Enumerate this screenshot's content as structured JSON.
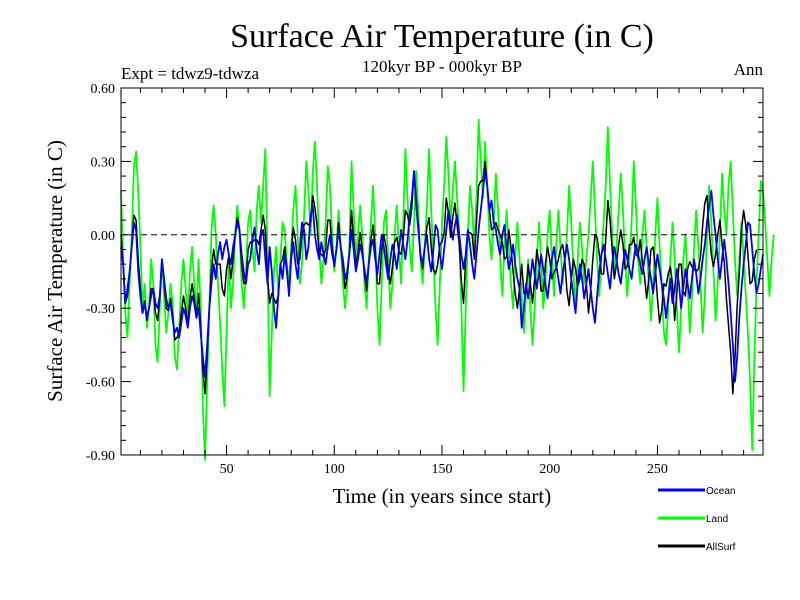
{
  "chart_data": {
    "type": "line",
    "title": "Surface Air Temperature (in C)",
    "subtitle": "120kyr BP - 000kyr BP",
    "left_label": "Expt = tdwz9-tdwza",
    "right_label": "Ann",
    "xlabel": "Time (in years since start)",
    "ylabel": "Surface Air Temperature (in C)",
    "xlim": [
      1,
      299
    ],
    "ylim": [
      -0.9,
      0.6
    ],
    "xticks": [
      50,
      100,
      150,
      200,
      250
    ],
    "xtick_labels": [
      "50",
      "100",
      "150",
      "200",
      "250"
    ],
    "yticks": [
      -0.9,
      -0.6,
      -0.3,
      0.0,
      0.3,
      0.6
    ],
    "ytick_labels": [
      "-0.90",
      "-0.60",
      "-0.30",
      "0.00",
      "0.30",
      "0.60"
    ],
    "reference_line": 0.0,
    "legend_position": "bottom-right, below plot",
    "x_series_note": "years 1..299",
    "series": [
      {
        "name": "Ocean",
        "color": "#0000ff",
        "x_start": 1,
        "values": [
          -0.05,
          -0.12,
          -0.28,
          -0.22,
          -0.15,
          -0.05,
          0.05,
          0.02,
          -0.15,
          -0.25,
          -0.32,
          -0.28,
          -0.34,
          -0.3,
          -0.25,
          -0.22,
          -0.28,
          -0.3,
          -0.25,
          -0.1,
          -0.18,
          -0.26,
          -0.3,
          -0.28,
          -0.35,
          -0.4,
          -0.38,
          -0.42,
          -0.36,
          -0.3,
          -0.33,
          -0.38,
          -0.3,
          -0.25,
          -0.28,
          -0.34,
          -0.3,
          -0.4,
          -0.5,
          -0.58,
          -0.45,
          -0.3,
          -0.2,
          -0.12,
          -0.18,
          -0.08,
          -0.03,
          -0.1,
          -0.05,
          -0.02,
          -0.08,
          -0.12,
          -0.05,
          0.0,
          0.05,
          0.02,
          -0.08,
          -0.15,
          -0.2,
          -0.12,
          -0.1,
          -0.02,
          0.03,
          -0.06,
          -0.12,
          0.0,
          0.02,
          -0.1,
          -0.2,
          -0.05,
          -0.15,
          -0.3,
          -0.38,
          -0.25,
          -0.12,
          -0.18,
          -0.08,
          -0.15,
          -0.25,
          -0.1,
          -0.03,
          -0.12,
          -0.18,
          -0.05,
          0.05,
          0.02,
          -0.1,
          -0.05,
          0.08,
          0.12,
          0.0,
          -0.06,
          -0.1,
          -0.03,
          -0.08,
          -0.12,
          -0.05,
          0.0,
          -0.08,
          -0.12,
          -0.06,
          0.02,
          -0.05,
          -0.1,
          -0.18,
          -0.15,
          -0.08,
          0.02,
          -0.06,
          -0.15,
          -0.1,
          -0.04,
          -0.08,
          -0.14,
          -0.2,
          -0.12,
          -0.05,
          -0.02,
          -0.1,
          -0.16,
          -0.08,
          0.0,
          -0.05,
          -0.12,
          -0.18,
          -0.1,
          -0.04,
          -0.08,
          -0.14,
          -0.06,
          0.02,
          -0.04,
          -0.1,
          -0.02,
          0.08,
          0.15,
          0.26,
          0.12,
          0.02,
          -0.08,
          -0.12,
          -0.05,
          0.0,
          -0.1,
          -0.15,
          -0.06,
          0.04,
          0.02,
          -0.08,
          -0.14,
          -0.06,
          0.02,
          0.1,
          0.05,
          -0.02,
          0.04,
          0.08,
          0.0,
          -0.08,
          -0.14,
          -0.08,
          0.02,
          -0.04,
          -0.12,
          -0.18,
          -0.08,
          0.02,
          0.1,
          0.18,
          0.26,
          0.2,
          0.1,
          0.14,
          0.05,
          0.02,
          -0.04,
          -0.08,
          0.0,
          0.04,
          -0.06,
          -0.14,
          -0.1,
          -0.04,
          -0.12,
          -0.18,
          -0.22,
          -0.38,
          -0.3,
          -0.2,
          -0.26,
          -0.18,
          -0.1,
          -0.16,
          -0.22,
          -0.15,
          -0.08,
          -0.14,
          -0.2,
          -0.26,
          -0.18,
          -0.1,
          -0.05,
          -0.12,
          -0.18,
          -0.24,
          -0.16,
          -0.1,
          -0.04,
          -0.1,
          -0.18,
          -0.25,
          -0.32,
          -0.2,
          -0.12,
          -0.18,
          -0.26,
          -0.2,
          -0.14,
          -0.22,
          -0.3,
          -0.36,
          -0.25,
          -0.15,
          -0.08,
          -0.04,
          -0.1,
          -0.16,
          -0.22,
          -0.12,
          -0.05,
          -0.1,
          -0.16,
          -0.2,
          -0.12,
          -0.06,
          -0.1,
          -0.14,
          -0.18,
          -0.1,
          -0.04,
          -0.08,
          -0.12,
          -0.16,
          -0.1,
          -0.05,
          -0.12,
          -0.18,
          -0.24,
          -0.16,
          -0.08,
          -0.14,
          -0.2,
          -0.26,
          -0.34,
          -0.26,
          -0.18,
          -0.28,
          -0.22,
          -0.14,
          -0.2,
          -0.3,
          -0.22,
          -0.14,
          -0.2,
          -0.26,
          -0.18,
          -0.1,
          -0.16,
          -0.24,
          -0.18,
          -0.1,
          -0.04,
          0.05,
          0.12,
          0.18,
          0.08,
          0.0,
          -0.1,
          -0.18,
          -0.1,
          -0.02,
          -0.1,
          -0.2,
          -0.32,
          -0.45,
          -0.6,
          -0.5,
          -0.34,
          -0.22,
          -0.12,
          -0.04,
          0.05,
          0.04,
          -0.06,
          -0.16,
          -0.24,
          -0.2,
          -0.14,
          -0.08
        ],
        "label": "Ocean"
      },
      {
        "name": "Land",
        "color": "#00ff00",
        "x_start": 1,
        "values": [
          0.18,
          -0.1,
          -0.32,
          -0.42,
          -0.2,
          0.0,
          0.28,
          0.34,
          0.18,
          -0.05,
          -0.3,
          -0.2,
          -0.38,
          -0.3,
          -0.1,
          -0.2,
          -0.45,
          -0.52,
          -0.3,
          -0.1,
          -0.25,
          -0.4,
          -0.32,
          -0.2,
          -0.28,
          -0.5,
          -0.55,
          -0.38,
          -0.2,
          -0.1,
          -0.22,
          -0.35,
          -0.15,
          -0.05,
          -0.2,
          -0.32,
          -0.1,
          -0.3,
          -0.7,
          -0.92,
          -0.6,
          -0.3,
          0.02,
          0.12,
          0.0,
          -0.2,
          -0.36,
          -0.55,
          -0.7,
          -0.4,
          -0.1,
          -0.3,
          -0.2,
          0.0,
          0.12,
          0.02,
          -0.2,
          -0.3,
          -0.15,
          0.05,
          0.1,
          -0.05,
          -0.15,
          0.1,
          0.2,
          0.05,
          0.2,
          0.35,
          -0.1,
          -0.66,
          -0.4,
          -0.15,
          -0.05,
          -0.25,
          -0.1,
          0.05,
          0.02,
          -0.12,
          -0.2,
          -0.05,
          0.1,
          0.2,
          0.0,
          -0.2,
          -0.12,
          0.08,
          0.3,
          0.18,
          0.0,
          0.25,
          0.38,
          0.2,
          -0.05,
          -0.2,
          -0.1,
          0.05,
          0.28,
          0.2,
          0.0,
          -0.15,
          -0.05,
          0.1,
          -0.05,
          -0.2,
          -0.3,
          -0.2,
          -0.05,
          0.3,
          0.1,
          -0.1,
          0.0,
          0.12,
          0.0,
          -0.2,
          -0.3,
          -0.1,
          0.05,
          0.2,
          0.0,
          -0.3,
          -0.45,
          -0.2,
          0.05,
          0.1,
          -0.1,
          -0.3,
          -0.2,
          0.0,
          0.12,
          -0.05,
          -0.2,
          0.05,
          0.35,
          0.15,
          -0.05,
          -0.15,
          0.05,
          0.26,
          0.1,
          -0.1,
          -0.2,
          -0.05,
          0.12,
          0.35,
          0.1,
          -0.1,
          -0.3,
          -0.45,
          -0.2,
          0.05,
          0.2,
          0.4,
          0.25,
          0.05,
          0.18,
          0.3,
          0.15,
          0.0,
          -0.3,
          -0.64,
          -0.3,
          0.0,
          0.2,
          0.1,
          -0.05,
          0.15,
          0.47,
          0.3,
          0.15,
          0.38,
          0.2,
          0.0,
          -0.1,
          0.05,
          0.25,
          0.1,
          -0.1,
          -0.25,
          -0.05,
          0.1,
          -0.05,
          -0.2,
          -0.3,
          -0.1,
          0.05,
          -0.1,
          -0.25,
          -0.4,
          -0.25,
          -0.1,
          -0.3,
          -0.45,
          -0.3,
          -0.1,
          0.05,
          -0.1,
          -0.3,
          -0.2,
          0.0,
          0.1,
          -0.1,
          -0.25,
          -0.05,
          0.1,
          -0.05,
          -0.2,
          -0.1,
          0.0,
          0.2,
          0.05,
          -0.15,
          -0.3,
          -0.1,
          0.05,
          -0.05,
          -0.2,
          -0.1,
          0.0,
          0.15,
          0.3,
          0.1,
          -0.1,
          -0.25,
          -0.1,
          0.05,
          0.2,
          0.44,
          0.2,
          0.0,
          -0.15,
          -0.05,
          0.1,
          0.25,
          0.1,
          -0.1,
          -0.25,
          -0.1,
          0.05,
          0.3,
          0.12,
          -0.1,
          -0.2,
          0.0,
          0.1,
          -0.05,
          -0.2,
          -0.35,
          -0.2,
          0.0,
          0.15,
          -0.05,
          -0.2,
          -0.4,
          -0.45,
          -0.3,
          -0.1,
          0.05,
          -0.1,
          -0.3,
          -0.48,
          -0.3,
          -0.1,
          0.0,
          -0.2,
          -0.4,
          -0.25,
          -0.05,
          0.1,
          -0.05,
          -0.2,
          -0.4,
          -0.25,
          0.0,
          0.2,
          0.05,
          -0.15,
          -0.35,
          -0.2,
          0.0,
          0.25,
          0.1,
          0.0,
          0.2,
          0.3,
          0.1,
          -0.1,
          -0.25,
          -0.1,
          0.05,
          -0.1,
          -0.25,
          -0.4,
          -0.6,
          -0.88,
          -0.5,
          -0.2,
          0.0,
          0.22,
          0.18,
          0.05,
          -0.1,
          -0.25,
          -0.1,
          0.0
        ],
        "label": "Land"
      },
      {
        "name": "AllSurf",
        "color": "#000000",
        "x_start": 1,
        "values": [
          0.0,
          -0.12,
          -0.28,
          -0.25,
          -0.16,
          -0.04,
          0.08,
          0.06,
          -0.1,
          -0.22,
          -0.32,
          -0.27,
          -0.35,
          -0.3,
          -0.22,
          -0.22,
          -0.32,
          -0.35,
          -0.26,
          -0.1,
          -0.2,
          -0.3,
          -0.31,
          -0.26,
          -0.33,
          -0.43,
          -0.42,
          -0.4,
          -0.32,
          -0.25,
          -0.3,
          -0.37,
          -0.26,
          -0.2,
          -0.26,
          -0.33,
          -0.24,
          -0.38,
          -0.55,
          -0.65,
          -0.5,
          -0.3,
          -0.14,
          -0.06,
          -0.12,
          -0.12,
          -0.12,
          -0.22,
          -0.25,
          -0.14,
          -0.09,
          -0.18,
          -0.1,
          0.0,
          0.07,
          0.02,
          -0.12,
          -0.2,
          -0.19,
          -0.06,
          -0.03,
          -0.03,
          -0.02,
          -0.02,
          -0.04,
          0.02,
          0.08,
          0.02,
          -0.17,
          -0.28,
          -0.24,
          -0.26,
          -0.28,
          -0.25,
          -0.12,
          -0.1,
          -0.05,
          -0.14,
          -0.24,
          -0.08,
          0.03,
          -0.02,
          -0.12,
          -0.1,
          0.0,
          0.04,
          0.05,
          0.04,
          0.05,
          0.16,
          0.11,
          0.04,
          -0.08,
          -0.08,
          -0.09,
          -0.06,
          0.06,
          0.06,
          -0.05,
          -0.13,
          -0.06,
          0.05,
          -0.05,
          -0.13,
          -0.22,
          -0.17,
          -0.07,
          0.1,
          -0.02,
          -0.13,
          -0.07,
          0.01,
          -0.06,
          -0.16,
          -0.23,
          -0.12,
          -0.02,
          0.04,
          -0.06,
          -0.2,
          -0.2,
          -0.06,
          0.0,
          -0.05,
          -0.15,
          -0.2,
          -0.13,
          -0.03,
          -0.01,
          -0.07,
          -0.08,
          -0.02,
          0.1,
          0.08,
          0.04,
          0.11,
          0.26,
          0.15,
          0.04,
          -0.09,
          -0.14,
          -0.05,
          0.03,
          0.07,
          -0.05,
          -0.14,
          -0.16,
          -0.12,
          -0.04,
          -0.03,
          0.01,
          0.15,
          0.09,
          -0.01,
          0.07,
          0.13,
          0.04,
          -0.04,
          -0.19,
          -0.28,
          -0.1,
          0.01,
          0.01,
          0.0,
          -0.1,
          0.05,
          0.2,
          0.22,
          0.22,
          0.3,
          0.2,
          0.1,
          0.02,
          0.03,
          0.05,
          0.02,
          0.0,
          -0.03,
          -0.1,
          -0.09,
          0.02,
          -0.05,
          -0.15,
          -0.24,
          -0.3,
          -0.22,
          -0.12,
          -0.24,
          -0.24,
          -0.12,
          -0.2,
          -0.28,
          -0.18,
          -0.06,
          -0.12,
          -0.23,
          -0.23,
          -0.12,
          -0.05,
          -0.1,
          -0.18,
          -0.15,
          -0.14,
          -0.1,
          -0.06,
          -0.04,
          -0.1,
          -0.23,
          -0.29,
          -0.18,
          -0.1,
          -0.14,
          -0.21,
          -0.18,
          -0.1,
          -0.12,
          -0.2,
          -0.32,
          -0.23,
          -0.1,
          0.0,
          -0.01,
          -0.08,
          -0.16,
          -0.16,
          -0.02,
          0.14,
          0.06,
          -0.06,
          -0.18,
          -0.12,
          -0.04,
          0.02,
          -0.04,
          -0.14,
          -0.13,
          -0.04,
          -0.04,
          -0.01,
          -0.08,
          -0.09,
          -0.02,
          -0.11,
          -0.17,
          -0.26,
          -0.18,
          -0.06,
          -0.05,
          -0.13,
          -0.26,
          -0.36,
          -0.31,
          -0.2,
          -0.21,
          -0.16,
          -0.13,
          -0.2,
          -0.35,
          -0.24,
          -0.12,
          -0.12,
          -0.23,
          -0.25,
          -0.14,
          -0.11,
          -0.13,
          -0.14,
          -0.15,
          -0.14,
          -0.09,
          0.04,
          0.13,
          0.16,
          0.02,
          -0.08,
          -0.13,
          -0.08,
          0.0,
          0.06,
          -0.04,
          -0.11,
          -0.26,
          -0.37,
          -0.48,
          -0.65,
          -0.5,
          -0.29,
          -0.16,
          0.02,
          0.1,
          0.04,
          -0.08,
          -0.2,
          -0.19,
          -0.1,
          -0.06
        ],
        "label": "AllSurf"
      }
    ]
  }
}
